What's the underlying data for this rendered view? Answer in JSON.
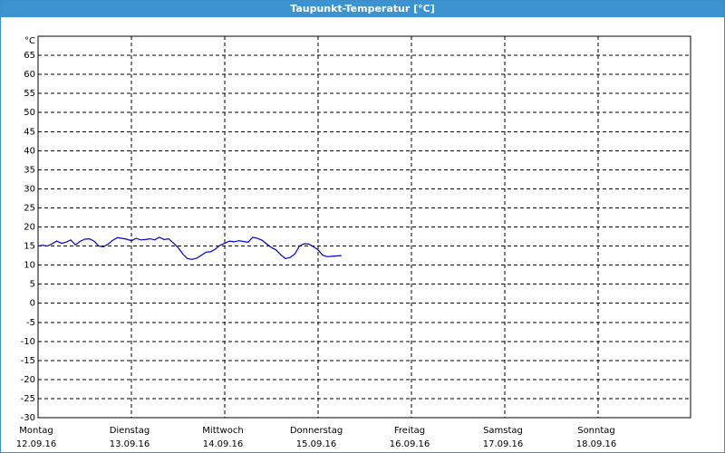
{
  "window": {
    "title": "Taupunkt-Temperatur [°C]"
  },
  "chart_data": {
    "type": "line",
    "title": "Taupunkt-Temperatur [°C]",
    "ylabel": "°C",
    "ylim": [
      -30,
      70
    ],
    "yticks": [
      65,
      60,
      55,
      50,
      45,
      40,
      35,
      30,
      25,
      20,
      15,
      10,
      5,
      0,
      -5,
      -10,
      -15,
      -20,
      -25,
      -30
    ],
    "xlim": [
      0,
      7
    ],
    "grid": true,
    "x_tick_days": [
      "Montag",
      "Dienstag",
      "Mittwoch",
      "Donnerstag",
      "Freitag",
      "Samstag",
      "Sonntag"
    ],
    "x_tick_dates": [
      "12.09.16",
      "13.09.16",
      "14.09.16",
      "15.09.16",
      "16.09.16",
      "17.09.16",
      "18.09.16"
    ],
    "colors": {
      "line": "#0000cc",
      "grid": "#000000",
      "title_bg": "#3d93cf"
    },
    "series": [
      {
        "values": [
          [
            0.0,
            15.0
          ],
          [
            0.05,
            15.2
          ],
          [
            0.1,
            15.0
          ],
          [
            0.15,
            15.6
          ],
          [
            0.2,
            16.3
          ],
          [
            0.25,
            15.7
          ],
          [
            0.3,
            16.0
          ],
          [
            0.35,
            16.6
          ],
          [
            0.4,
            15.3
          ],
          [
            0.45,
            16.2
          ],
          [
            0.5,
            16.8
          ],
          [
            0.55,
            16.9
          ],
          [
            0.6,
            16.3
          ],
          [
            0.65,
            15.0
          ],
          [
            0.7,
            14.8
          ],
          [
            0.75,
            15.5
          ],
          [
            0.8,
            16.5
          ],
          [
            0.85,
            17.2
          ],
          [
            0.9,
            17.0
          ],
          [
            0.95,
            16.8
          ],
          [
            1.0,
            16.4
          ],
          [
            1.05,
            17.0
          ],
          [
            1.1,
            16.6
          ],
          [
            1.15,
            16.7
          ],
          [
            1.2,
            16.9
          ],
          [
            1.25,
            16.6
          ],
          [
            1.3,
            17.3
          ],
          [
            1.35,
            16.7
          ],
          [
            1.4,
            16.9
          ],
          [
            1.45,
            15.8
          ],
          [
            1.5,
            14.6
          ],
          [
            1.55,
            12.9
          ],
          [
            1.6,
            11.7
          ],
          [
            1.65,
            11.5
          ],
          [
            1.7,
            11.8
          ],
          [
            1.75,
            12.6
          ],
          [
            1.8,
            13.4
          ],
          [
            1.85,
            13.5
          ],
          [
            1.9,
            14.2
          ],
          [
            1.95,
            15.2
          ],
          [
            2.0,
            15.7
          ],
          [
            2.05,
            16.3
          ],
          [
            2.1,
            16.1
          ],
          [
            2.15,
            16.4
          ],
          [
            2.2,
            16.2
          ],
          [
            2.25,
            16.0
          ],
          [
            2.3,
            17.3
          ],
          [
            2.35,
            17.0
          ],
          [
            2.4,
            16.5
          ],
          [
            2.45,
            15.5
          ],
          [
            2.5,
            14.6
          ],
          [
            2.55,
            14.0
          ],
          [
            2.6,
            12.7
          ],
          [
            2.65,
            11.7
          ],
          [
            2.7,
            12.0
          ],
          [
            2.75,
            12.9
          ],
          [
            2.8,
            15.0
          ],
          [
            2.85,
            15.6
          ],
          [
            2.9,
            15.5
          ],
          [
            2.95,
            14.8
          ],
          [
            3.0,
            14.0
          ],
          [
            3.05,
            12.6
          ],
          [
            3.1,
            12.2
          ],
          [
            3.15,
            12.3
          ],
          [
            3.2,
            12.4
          ],
          [
            3.25,
            12.5
          ]
        ]
      }
    ]
  }
}
